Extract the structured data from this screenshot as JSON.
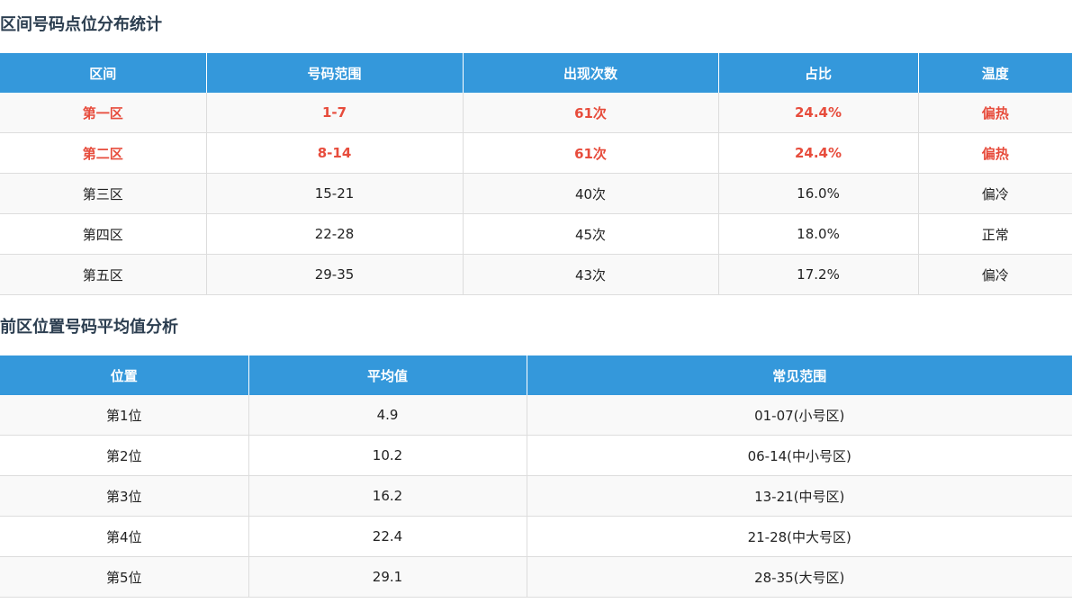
{
  "zone_section": {
    "title": "区间号码点位分布统计",
    "headers": [
      "区间",
      "号码范围",
      "出现次数",
      "占比",
      "温度"
    ],
    "rows": [
      {
        "zone": "第一区",
        "range": "1-7",
        "count": "61次",
        "ratio": "24.4%",
        "temp": "偏热",
        "highlight": true
      },
      {
        "zone": "第二区",
        "range": "8-14",
        "count": "61次",
        "ratio": "24.4%",
        "temp": "偏热",
        "highlight": true
      },
      {
        "zone": "第三区",
        "range": "15-21",
        "count": "40次",
        "ratio": "16.0%",
        "temp": "偏冷",
        "highlight": false
      },
      {
        "zone": "第四区",
        "range": "22-28",
        "count": "45次",
        "ratio": "18.0%",
        "temp": "正常",
        "highlight": false
      },
      {
        "zone": "第五区",
        "range": "29-35",
        "count": "43次",
        "ratio": "17.2%",
        "temp": "偏冷",
        "highlight": false
      }
    ]
  },
  "position_section": {
    "title": "前区位置号码平均值分析",
    "headers": [
      "位置",
      "平均值",
      "常见范围"
    ],
    "rows": [
      {
        "position": "第1位",
        "avg": "4.9",
        "range": "01-07(小号区)"
      },
      {
        "position": "第2位",
        "avg": "10.2",
        "range": "06-14(中小号区)"
      },
      {
        "position": "第3位",
        "avg": "16.2",
        "range": "13-21(中号区)"
      },
      {
        "position": "第4位",
        "avg": "22.4",
        "range": "21-28(中大号区)"
      },
      {
        "position": "第5位",
        "avg": "29.1",
        "range": "28-35(大号区)"
      }
    ]
  },
  "colors": {
    "header_bg": "#3498db",
    "hot_text": "#e74c3c",
    "title_text": "#2c3e50"
  }
}
